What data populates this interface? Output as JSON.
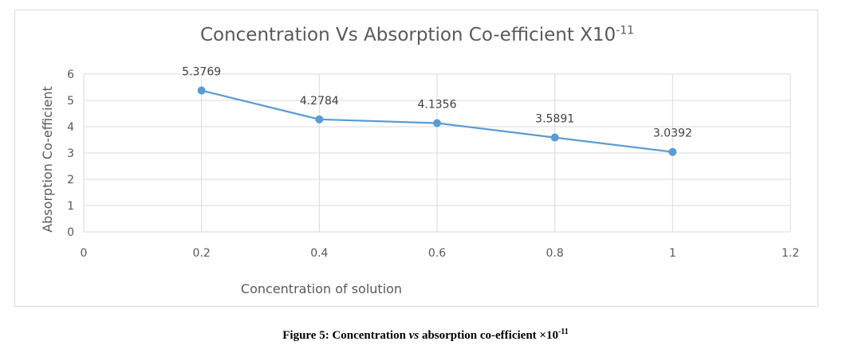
{
  "chart_data": {
    "type": "line",
    "title": "Concentration Vs Absorption Co-efficient X10",
    "title_superscript": "-11",
    "xlabel": "Concentration of solution",
    "ylabel": "Absorption Co-efficient",
    "x": [
      0.2,
      0.4,
      0.6,
      0.8,
      1.0
    ],
    "values": [
      5.3769,
      4.2784,
      4.1356,
      3.5891,
      3.0392
    ],
    "data_labels": [
      "5.3769",
      "4.2784",
      "4.1356",
      "3.5891",
      "3.0392"
    ],
    "xlim": [
      0,
      1.2
    ],
    "ylim": [
      0,
      6
    ],
    "x_ticks": [
      "0",
      "0.2",
      "0.4",
      "0.6",
      "0.8",
      "1",
      "1.2"
    ],
    "y_ticks": [
      "0",
      "1",
      "2",
      "3",
      "4",
      "5",
      "6"
    ],
    "grid": true,
    "legend": "none",
    "series_color": "#5b9bd5",
    "grid_color": "#d9d9d9",
    "text_color": "#595959"
  },
  "caption": {
    "prefix": "Figure 5: Concentration ",
    "italic": "vs",
    "suffix": " absorption co-efficient ×10",
    "superscript": "-11"
  }
}
